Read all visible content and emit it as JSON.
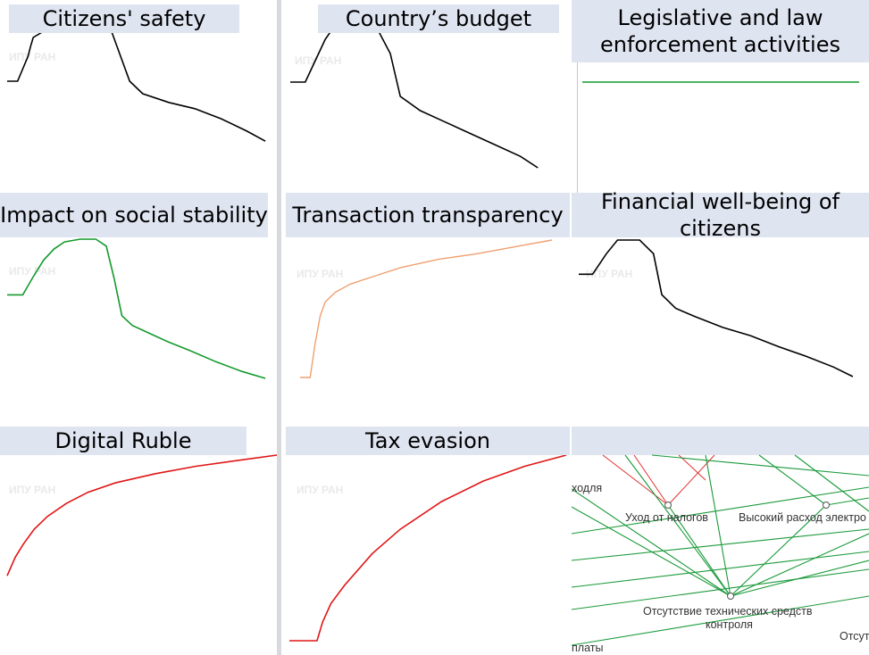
{
  "watermark": "ИПУ РАН",
  "colors": {
    "title_bg": "#dfe4f1",
    "black": "#000000",
    "green": "#139a2c",
    "orange": "#f0a070",
    "red": "#e01515"
  },
  "chart_data": [
    {
      "type": "line",
      "title": "Citizens' safety",
      "color": "#000000",
      "x": [
        0,
        4,
        8,
        9,
        10,
        14,
        20,
        25,
        30,
        40,
        47,
        52,
        62,
        72,
        82,
        92,
        99
      ],
      "y": [
        0.6,
        0.6,
        0.8,
        0.88,
        0.95,
        1.0,
        1.0,
        1.0,
        1.0,
        1.0,
        0.6,
        0.5,
        0.43,
        0.38,
        0.3,
        0.2,
        0.12
      ]
    },
    {
      "type": "line",
      "title": "Country’s budget",
      "color": "#000000",
      "x": [
        0,
        6,
        10,
        14,
        18,
        22,
        28,
        34,
        40,
        44,
        52,
        62,
        72,
        82,
        92,
        99
      ],
      "y": [
        0.6,
        0.6,
        0.75,
        0.9,
        1.0,
        1.0,
        1.0,
        1.0,
        0.8,
        0.5,
        0.4,
        0.32,
        0.24,
        0.16,
        0.08,
        0.0
      ]
    },
    {
      "type": "line",
      "title": "Legislative and law enforcement activities",
      "color": "#139a2c",
      "x": [
        0,
        100
      ],
      "y": [
        0.5,
        0.5
      ]
    },
    {
      "type": "line",
      "title": "Impact on social stability",
      "color": "#139a2c",
      "x": [
        0,
        6,
        10,
        14,
        18,
        22,
        28,
        34,
        38,
        41,
        44,
        48,
        55,
        62,
        70,
        80,
        90,
        99
      ],
      "y": [
        0.6,
        0.6,
        0.73,
        0.85,
        0.93,
        0.98,
        1.0,
        1.0,
        0.95,
        0.72,
        0.45,
        0.38,
        0.32,
        0.26,
        0.2,
        0.12,
        0.05,
        0.0
      ]
    },
    {
      "type": "line",
      "title": "Transaction transparency",
      "color": "#f0a070",
      "x": [
        0,
        4,
        6,
        8,
        10,
        14,
        20,
        30,
        40,
        55,
        70,
        85,
        100
      ],
      "y": [
        0.0,
        0.0,
        0.25,
        0.45,
        0.55,
        0.62,
        0.68,
        0.74,
        0.8,
        0.86,
        0.9,
        0.95,
        1.0
      ]
    },
    {
      "type": "line",
      "title": "Financial well-being of citizens",
      "color": "#000000",
      "x": [
        0,
        5,
        10,
        14,
        18,
        22,
        27,
        30,
        35,
        42,
        52,
        62,
        72,
        82,
        92,
        99
      ],
      "y": [
        0.75,
        0.75,
        0.9,
        1.0,
        1.0,
        1.0,
        0.9,
        0.6,
        0.5,
        0.44,
        0.36,
        0.3,
        0.22,
        0.15,
        0.07,
        0.0
      ]
    },
    {
      "type": "line",
      "title": "Digital Ruble",
      "color": "#e01515",
      "x": [
        0,
        3,
        6,
        10,
        15,
        22,
        30,
        40,
        55,
        70,
        85,
        100
      ],
      "y": [
        0.35,
        0.45,
        0.52,
        0.6,
        0.67,
        0.74,
        0.8,
        0.85,
        0.9,
        0.94,
        0.97,
        1.0
      ]
    },
    {
      "type": "line",
      "title": "Tax evasion",
      "color": "#e01515",
      "x": [
        0,
        10,
        12,
        15,
        20,
        30,
        40,
        55,
        70,
        85,
        100
      ],
      "y": [
        0.0,
        0.0,
        0.1,
        0.2,
        0.3,
        0.47,
        0.6,
        0.75,
        0.86,
        0.94,
        1.0
      ]
    }
  ],
  "graph": {
    "labels": [
      "ходля",
      "Уход от налогов",
      "Высокий расход электро",
      "Отсутствие технических средств",
      "контроля",
      "Отсут",
      "платы"
    ]
  }
}
